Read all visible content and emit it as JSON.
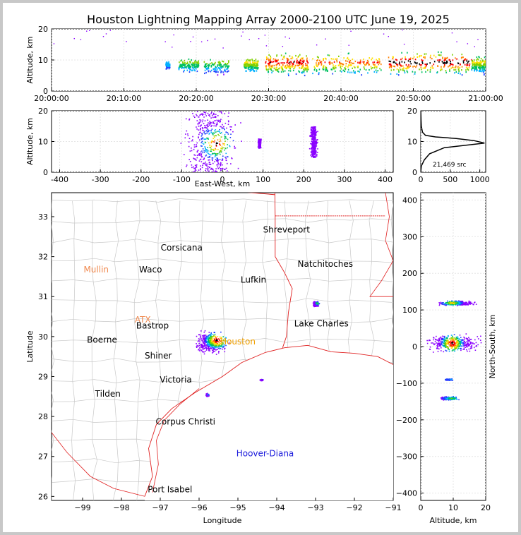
{
  "title": "Houston Lightning Mapping Array 2000-2100 UTC June 19, 2025",
  "chart_data": [
    {
      "panel": "time-altitude",
      "type": "scatter",
      "xlabel": "",
      "ylabel": "Altitude, km",
      "x_ticks": [
        "20:00:00",
        "20:10:00",
        "20:20:00",
        "20:30:00",
        "20:40:00",
        "20:50:00",
        "21:00:00"
      ],
      "x_range_min": [
        0,
        60
      ],
      "ylim": [
        0,
        20
      ],
      "y_ticks": [
        0,
        10,
        20
      ],
      "activity": [
        {
          "t": [
            15.7,
            16.3
          ],
          "alt": [
            7,
            10
          ],
          "density": 0.3
        },
        {
          "t": [
            17.5,
            20.3
          ],
          "alt": [
            6,
            11
          ],
          "density": 0.5
        },
        {
          "t": [
            21.0,
            24.5
          ],
          "alt": [
            5,
            11
          ],
          "density": 0.5
        },
        {
          "t": [
            26.5,
            28.5
          ],
          "alt": [
            6,
            11
          ],
          "density": 0.6
        },
        {
          "t": [
            29.5,
            35.5
          ],
          "alt": [
            4,
            13
          ],
          "density": 0.9
        },
        {
          "t": [
            36.0,
            45.5
          ],
          "alt": [
            4,
            13
          ],
          "density": 0.8
        },
        {
          "t": [
            46.5,
            58.0
          ],
          "alt": [
            4,
            14
          ],
          "density": 1.0
        },
        {
          "t": [
            58.0,
            60.0
          ],
          "alt": [
            5,
            12
          ],
          "density": 0.6
        }
      ]
    },
    {
      "panel": "east-west-altitude",
      "type": "scatter",
      "xlabel": "East-West, km",
      "ylabel": "Altitude, km",
      "xlim": [
        -420,
        420
      ],
      "x_ticks": [
        -400,
        -300,
        -200,
        -100,
        0,
        100,
        200,
        300,
        400
      ],
      "ylim": [
        0,
        20
      ],
      "y_ticks": [
        0,
        10,
        20
      ],
      "clusters": [
        {
          "x": [
            -110,
            50
          ],
          "alt": [
            0,
            20
          ],
          "density": 1.0
        },
        {
          "x": [
            85,
            95
          ],
          "alt": [
            8,
            11
          ],
          "density": 0.4
        },
        {
          "x": [
            212,
            235
          ],
          "alt": [
            5,
            15
          ],
          "density": 0.7
        }
      ]
    },
    {
      "panel": "altitude-histogram",
      "type": "line",
      "xlim": [
        0,
        1100
      ],
      "x_ticks": [
        0,
        500,
        1000
      ],
      "ylim": [
        0,
        20
      ],
      "y_ticks": [
        0,
        10,
        20
      ],
      "annotation": "21,469 src",
      "points": [
        [
          0,
          0
        ],
        [
          10,
          2
        ],
        [
          60,
          4
        ],
        [
          150,
          6
        ],
        [
          400,
          8
        ],
        [
          1080,
          9.5
        ],
        [
          900,
          10.3
        ],
        [
          600,
          11
        ],
        [
          250,
          11.5
        ],
        [
          80,
          12
        ],
        [
          30,
          13
        ],
        [
          10,
          15
        ],
        [
          5,
          17
        ],
        [
          3,
          18
        ],
        [
          0,
          20
        ]
      ]
    },
    {
      "panel": "map",
      "type": "scatter",
      "xlabel": "Longitude",
      "ylabel": "Latitude",
      "xlim": [
        -99.8,
        -91
      ],
      "x_ticks": [
        -99,
        -98,
        -97,
        -96,
        -95,
        -94,
        -93,
        -92,
        -91
      ],
      "ylim": [
        25.9,
        33.6
      ],
      "y_ticks": [
        26,
        27,
        28,
        29,
        30,
        31,
        32,
        33
      ],
      "places": [
        {
          "name": "Shreveport",
          "lon": -93.75,
          "lat": 32.6,
          "color": "#000000"
        },
        {
          "name": "Corsicana",
          "lon": -96.45,
          "lat": 32.15,
          "color": "#000000"
        },
        {
          "name": "Natchitoches",
          "lon": -92.75,
          "lat": 31.75,
          "color": "#000000"
        },
        {
          "name": "Mullin",
          "lon": -98.65,
          "lat": 31.6,
          "color": "#f08a50"
        },
        {
          "name": "Waco",
          "lon": -97.25,
          "lat": 31.6,
          "color": "#000000"
        },
        {
          "name": "Lufkin",
          "lon": -94.6,
          "lat": 31.35,
          "color": "#000000"
        },
        {
          "name": "ATX",
          "lon": -97.45,
          "lat": 30.35,
          "color": "#f08a50"
        },
        {
          "name": "Lake Charles",
          "lon": -92.85,
          "lat": 30.25,
          "color": "#000000"
        },
        {
          "name": "Bastrop",
          "lon": -97.2,
          "lat": 30.2,
          "color": "#000000"
        },
        {
          "name": "Houston",
          "lon": -95.0,
          "lat": 29.8,
          "color": "#f0a000"
        },
        {
          "name": "Boerne",
          "lon": -98.5,
          "lat": 29.85,
          "color": "#000000"
        },
        {
          "name": "Shiner",
          "lon": -97.05,
          "lat": 29.45,
          "color": "#000000"
        },
        {
          "name": "Victoria",
          "lon": -96.6,
          "lat": 28.85,
          "color": "#000000"
        },
        {
          "name": "Tilden",
          "lon": -98.35,
          "lat": 28.5,
          "color": "#000000"
        },
        {
          "name": "Corpus Christi",
          "lon": -96.35,
          "lat": 27.8,
          "color": "#000000"
        },
        {
          "name": "Hoover-Diana",
          "lon": -94.3,
          "lat": 27.0,
          "color": "#1a1adc"
        },
        {
          "name": "Port Isabel",
          "lon": -96.75,
          "lat": 26.1,
          "color": "#000000"
        }
      ],
      "clusters": [
        {
          "lon": [
            -96.2,
            -95.2
          ],
          "lat": [
            29.5,
            30.2
          ],
          "density": 1.0
        },
        {
          "lon": [
            -93.1,
            -92.9
          ],
          "lat": [
            30.75,
            30.9
          ],
          "density": 0.6
        },
        {
          "lon": [
            -95.85,
            -95.75
          ],
          "lat": [
            28.5,
            28.6
          ],
          "density": 0.3
        },
        {
          "lon": [
            -94.45,
            -94.35
          ],
          "lat": [
            28.9,
            28.95
          ],
          "density": 0.2
        }
      ]
    },
    {
      "panel": "altitude-north-south",
      "type": "scatter",
      "xlabel": "Altitude, km",
      "ylabel": "North-South, km",
      "xlim": [
        0,
        20
      ],
      "x_ticks": [
        0,
        10,
        20
      ],
      "ylim": [
        -420,
        420
      ],
      "y_ticks": [
        -400,
        -300,
        -200,
        -100,
        0,
        100,
        200,
        300,
        400
      ],
      "clusters": [
        {
          "alt": [
            4,
            18
          ],
          "ns": [
            112,
            128
          ],
          "density": 0.7
        },
        {
          "alt": [
            0,
            20
          ],
          "ns": [
            -20,
            40
          ],
          "density": 1.0
        },
        {
          "alt": [
            7,
            10
          ],
          "ns": [
            -92,
            -86
          ],
          "density": 0.3
        },
        {
          "alt": [
            5,
            12
          ],
          "ns": [
            -146,
            -134
          ],
          "density": 0.5
        }
      ]
    }
  ]
}
